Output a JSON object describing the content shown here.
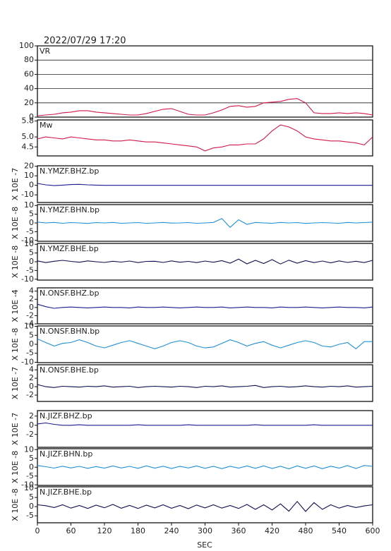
{
  "chart_data": {
    "type": "line",
    "title": "2022/07/29  17:20",
    "xlabel": "SEC",
    "x": [
      0,
      15,
      30,
      45,
      60,
      75,
      90,
      105,
      120,
      135,
      150,
      165,
      180,
      195,
      210,
      225,
      240,
      255,
      270,
      285,
      300,
      315,
      330,
      345,
      360,
      375,
      390,
      405,
      420,
      435,
      450,
      465,
      480,
      495,
      510,
      525,
      540,
      555,
      570,
      585,
      600
    ],
    "xlim": [
      0,
      600
    ],
    "xticks": [
      0,
      60,
      120,
      180,
      240,
      300,
      360,
      420,
      480,
      540,
      600
    ],
    "panels": [
      {
        "name": "VR",
        "color": "#d0184a",
        "ylim": [
          0,
          100
        ],
        "yticks": [
          0,
          20,
          40,
          60,
          80,
          100
        ],
        "grid": true,
        "values": [
          2,
          3,
          4,
          6,
          7,
          9,
          9,
          7,
          6,
          5,
          4,
          3,
          3,
          5,
          8,
          11,
          12,
          8,
          4,
          3,
          3,
          6,
          10,
          15,
          16,
          14,
          15,
          20,
          21,
          22,
          25,
          26,
          20,
          6,
          5,
          5,
          6,
          5,
          6,
          5,
          3
        ]
      },
      {
        "name": "Mw",
        "color": "#d0184a",
        "ylim": [
          4.05,
          5.85
        ],
        "yticks": [
          4.5,
          {
            "value": 5,
            "label": "5.0"
          },
          5.8
        ],
        "values": [
          4.9,
          5.0,
          4.95,
          4.9,
          5.0,
          4.95,
          4.9,
          4.85,
          4.85,
          4.8,
          4.8,
          4.85,
          4.8,
          4.75,
          4.75,
          4.7,
          4.65,
          4.6,
          4.55,
          4.5,
          4.3,
          4.45,
          4.5,
          4.6,
          4.6,
          4.65,
          4.65,
          4.9,
          5.3,
          5.6,
          5.5,
          5.3,
          5.0,
          4.9,
          4.85,
          4.8,
          4.8,
          4.75,
          4.7,
          4.6,
          5.0
        ]
      },
      {
        "name": "N.YMZF.BHZ.bp",
        "scale": "X 10E -7",
        "color": "#1c1c8e",
        "ylim": [
          -18,
          20.5
        ],
        "yticks": [
          -10,
          0,
          10,
          20
        ],
        "values": [
          2,
          0.5,
          -0.3,
          0.2,
          0.8,
          1,
          0.5,
          0.2,
          0,
          0,
          0,
          0,
          0,
          0,
          0,
          0,
          0,
          0,
          0,
          0,
          0,
          0,
          0,
          0,
          0,
          0,
          0,
          0,
          0,
          0,
          0,
          0,
          0,
          0,
          0,
          0,
          0,
          0,
          0,
          0,
          0
        ]
      },
      {
        "name": "N.YMZF.BHN.bp",
        "scale": "X 10E -8",
        "color": "#1f8fd6",
        "ylim": [
          -10.5,
          10.5
        ],
        "yticks": [
          -10,
          -5,
          0,
          5,
          10
        ],
        "values": [
          0.5,
          0,
          0.3,
          -0.2,
          0.2,
          0,
          -0.3,
          0.2,
          0,
          0.3,
          -0.2,
          0,
          0.2,
          -0.2,
          0,
          0.3,
          -0.1,
          0,
          0.2,
          -0.2,
          0,
          0.3,
          2.5,
          -2.5,
          1.8,
          -0.8,
          0.3,
          0,
          -0.2,
          0.3,
          0,
          0.2,
          -0.3,
          0,
          0.2,
          0,
          -0.2,
          0.3,
          0,
          0.2,
          0.5
        ]
      },
      {
        "name": "N.YMZF.BHE.bp",
        "scale": "X 10E -8",
        "color": "#0e0e50",
        "ylim": [
          -10.5,
          10.5
        ],
        "yticks": [
          -10,
          -5,
          0,
          5,
          10
        ],
        "values": [
          0.5,
          -0.5,
          0.3,
          0.8,
          0.2,
          -0.3,
          0.5,
          0,
          -0.4,
          0.3,
          -0.2,
          0.4,
          -0.5,
          0.2,
          0.3,
          -0.4,
          0.5,
          -0.3,
          0.2,
          -0.5,
          0.4,
          -0.3,
          0.6,
          -0.8,
          1.5,
          -1.2,
          0.8,
          -1,
          1.2,
          -1.3,
          0.9,
          -0.8,
          0.6,
          -0.5,
          0.4,
          -0.6,
          0.5,
          -0.4,
          0.3,
          -0.5,
          0.8
        ]
      },
      {
        "name": "N.ONSF.BHZ.bp",
        "scale": "X 10E -4",
        "color": "#1c1c8e",
        "ylim": [
          -4,
          4.8
        ],
        "yticks": [
          -4,
          -2,
          0,
          2,
          4
        ],
        "values": [
          0.8,
          0.2,
          -0.2,
          0,
          0.1,
          0,
          -0.1,
          0,
          0.1,
          0,
          0,
          -0.1,
          0.1,
          0,
          0,
          0.1,
          0,
          -0.1,
          0,
          0.1,
          0,
          0,
          0.1,
          -0.1,
          0,
          0.1,
          0,
          0,
          -0.1,
          0.1,
          0,
          0,
          0.1,
          0,
          -0.1,
          0,
          0.1,
          0,
          0,
          -0.1,
          0.1
        ]
      },
      {
        "name": "N.ONSF.BHN.bp",
        "scale": "X 10E -8",
        "color": "#1f8fd6",
        "ylim": [
          -10.2,
          10.2
        ],
        "yticks": [
          -10,
          -5,
          0,
          5,
          10
        ],
        "values": [
          3,
          1,
          -1,
          0.5,
          1,
          2.5,
          1,
          -1,
          -2,
          -0.5,
          1,
          2,
          0.5,
          -1,
          -2.5,
          -1,
          1,
          2,
          1,
          -1,
          -2,
          -1.5,
          0.5,
          2.5,
          1,
          -1,
          0.5,
          1.5,
          -0.5,
          -2,
          -0.5,
          1,
          2,
          1,
          -1,
          -1.5,
          0,
          1,
          -2.5,
          1.5,
          1.5
        ]
      },
      {
        "name": "N.ONSF.BHE.bp",
        "scale": "X 10E -7",
        "color": "#0e0e50",
        "ylim": [
          -3.5,
          5.2
        ],
        "yticks": [
          -2,
          0,
          2,
          4
        ],
        "values": [
          0.5,
          0,
          -0.2,
          0.1,
          0,
          -0.1,
          0.1,
          0,
          0.2,
          -0.1,
          0,
          0.1,
          -0.2,
          0,
          0.1,
          0,
          -0.1,
          0.1,
          0,
          -0.2,
          0.1,
          0,
          0.2,
          -0.1,
          0,
          0.1,
          0.3,
          -0.2,
          0,
          0.1,
          -0.1,
          0,
          0.2,
          0,
          -0.1,
          0.1,
          0,
          0.2,
          -0.1,
          0,
          0.1
        ]
      },
      {
        "name": "N.JIZF.BHZ.bp",
        "scale": "X 10E -7",
        "color": "#1c1c8e",
        "ylim": [
          -4.8,
          3.2
        ],
        "yticks": [
          -2,
          0,
          2
        ],
        "values": [
          0.3,
          0.5,
          0.2,
          0,
          0,
          0.1,
          0,
          0,
          0,
          0,
          0,
          0,
          0.1,
          0,
          0,
          0,
          0,
          0,
          0.1,
          0,
          0,
          0,
          0,
          0,
          0,
          0,
          0.1,
          0,
          0,
          0,
          0,
          0,
          0,
          0.1,
          0,
          0,
          0,
          0,
          0,
          0,
          0
        ]
      },
      {
        "name": "N.JIZF.BHN.bp",
        "scale": "X 10E -8",
        "color": "#1f8fd6",
        "ylim": [
          -10.3,
          10.5
        ],
        "yticks": [
          -10,
          -5,
          0,
          5,
          10
        ],
        "values": [
          1,
          0.3,
          -0.5,
          0.6,
          -0.4,
          0.5,
          -0.6,
          0.4,
          -0.5,
          0.7,
          -0.4,
          0.5,
          -0.6,
          0.8,
          -0.5,
          0.6,
          -0.7,
          0.5,
          -0.4,
          0.7,
          -0.6,
          0.5,
          -0.8,
          0.6,
          -0.5,
          0.7,
          -0.6,
          0.8,
          -0.7,
          0.6,
          -0.9,
          0.8,
          -0.6,
          0.7,
          -0.8,
          0.6,
          -0.5,
          0.9,
          -0.7,
          1,
          0.5
        ]
      },
      {
        "name": "N.JIZF.BHE.bp",
        "scale": "X 10E -8",
        "color": "#0e0e50",
        "ylim": [
          -8.8,
          10.8
        ],
        "yticks": [
          -5,
          0,
          5,
          10
        ],
        "values": [
          1,
          0.5,
          -0.5,
          1,
          -0.8,
          0.6,
          -1,
          0.8,
          -0.6,
          1.2,
          -0.9,
          0.7,
          -1,
          0.8,
          -0.7,
          1,
          -0.9,
          0.6,
          -1.1,
          0.9,
          -0.7,
          1,
          -0.8,
          0.6,
          -1,
          1.2,
          -1.5,
          1,
          -1.8,
          1.5,
          -2.5,
          2.8,
          -2.6,
          2.2,
          -1.5,
          1,
          -0.8,
          0.6,
          -0.5,
          0.4,
          1
        ]
      }
    ]
  }
}
